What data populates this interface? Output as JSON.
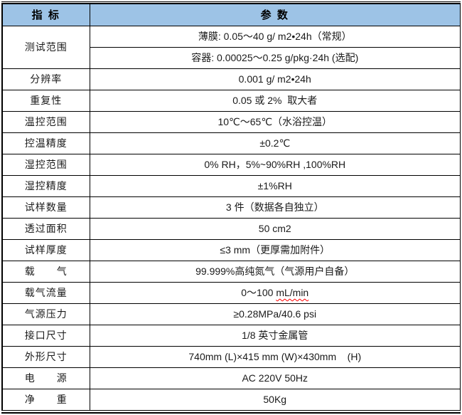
{
  "table": {
    "header": {
      "indicator": "指 标",
      "parameter": "参 数"
    },
    "rows": [
      {
        "label": "测试范围",
        "value": "薄膜: 0.05～40 g/ m2•24h（常规）"
      },
      {
        "label": "",
        "value": "容器: 0.00025～0.25 g/pkg·24h (选配)"
      },
      {
        "label": "分辨率",
        "value": "0.001 g/ m2•24h"
      },
      {
        "label": "重复性",
        "value": "0.05 或 2%  取大者"
      },
      {
        "label": "温控范围",
        "value": "10℃～65℃（水浴控温）"
      },
      {
        "label": "控温精度",
        "value": "±0.2℃"
      },
      {
        "label": "湿控范围",
        "value": "0% RH，5%~90%RH ,100%RH"
      },
      {
        "label": "湿控精度",
        "value": "±1%RH"
      },
      {
        "label": "试样数量",
        "value": "3 件（数据各自独立）"
      },
      {
        "label": "透过面积",
        "value": "50 cm2"
      },
      {
        "label": "试样厚度",
        "value": "≤3 mm（更厚需加附件）"
      },
      {
        "label": "载　　气",
        "value": "99.999%高纯氮气（气源用户自备）"
      },
      {
        "label": "载气流量",
        "value_prefix": "0～100 ",
        "value_misspelled": "mL/min"
      },
      {
        "label": "气源压力",
        "value": "≥0.28MPa/40.6 psi"
      },
      {
        "label": "接口尺寸",
        "value": "1/8 英寸金属管"
      },
      {
        "label": "外形尺寸",
        "value": "740mm (L)×415 mm (W)×430mm    (H)"
      },
      {
        "label": "电　　源",
        "value": "AC 220V 50Hz"
      },
      {
        "label": "净　　重",
        "value": "50Kg"
      }
    ]
  },
  "colors": {
    "header_bg": "#9DC3E6",
    "border": "#000000",
    "spellcheck_underline": "#FF0000"
  }
}
